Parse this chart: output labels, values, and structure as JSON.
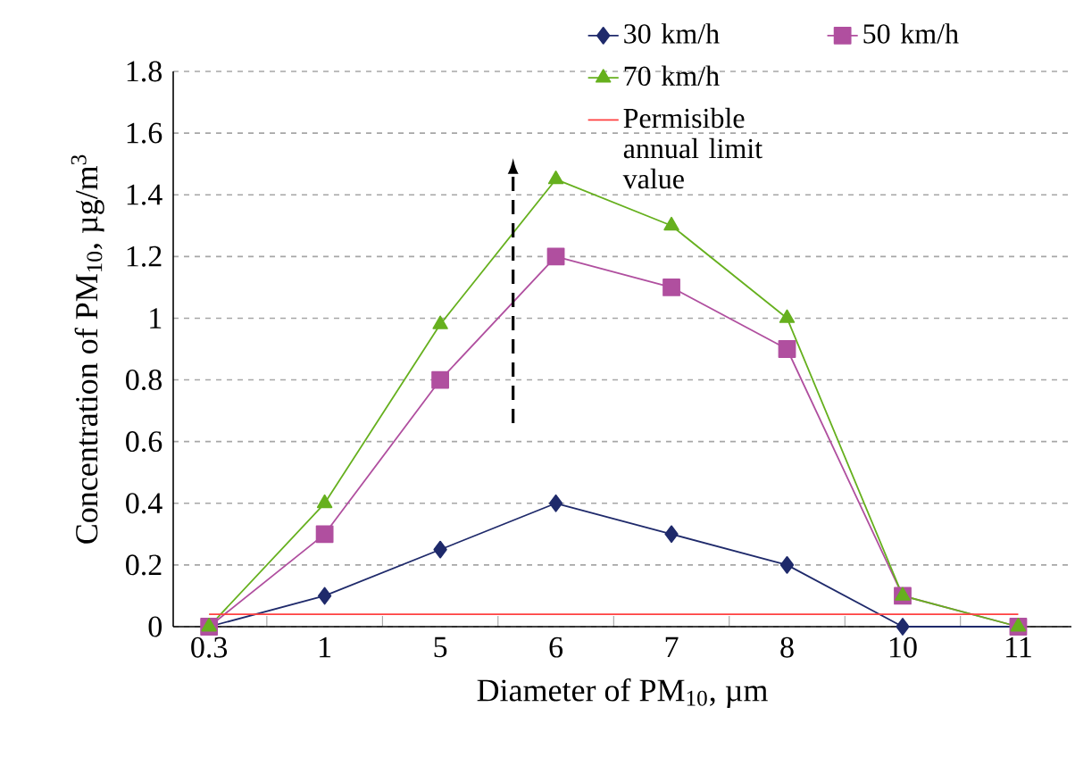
{
  "chart_data": {
    "type": "line",
    "xlabel": "Diameter of PM$_{10}$, µm",
    "ylabel": "Concentration of PM$_{10}$, µg/m$^{3}$",
    "categories": [
      "0.3",
      "1",
      "5",
      "6",
      "7",
      "8",
      "10",
      "11"
    ],
    "series": [
      {
        "name": "30 km/h",
        "color": "#1f2a6b",
        "marker": "diamond",
        "values": [
          0,
          0.1,
          0.25,
          0.4,
          0.3,
          0.2,
          0,
          0
        ]
      },
      {
        "name": "50 km/h",
        "color": "#b04f9f",
        "marker": "square",
        "values": [
          0,
          0.3,
          0.8,
          1.2,
          1.1,
          0.9,
          0.1,
          0
        ]
      },
      {
        "name": "70 km/h",
        "color": "#66b01e",
        "marker": "triangle",
        "values": [
          0,
          0.4,
          0.98,
          1.45,
          1.3,
          1.0,
          0.1,
          0
        ]
      }
    ],
    "ref_lines": [
      {
        "axis": "y",
        "value": 0.04,
        "label": "Permisible annual limit value",
        "color": "#ff4040"
      }
    ],
    "ylim": [
      0,
      1.8
    ],
    "yticks": [
      0,
      0.2,
      0.4,
      0.6,
      0.8,
      1,
      1.2,
      1.4,
      1.6,
      1.8
    ],
    "grid": "y",
    "legend": "top right",
    "line_style": "solid"
  }
}
